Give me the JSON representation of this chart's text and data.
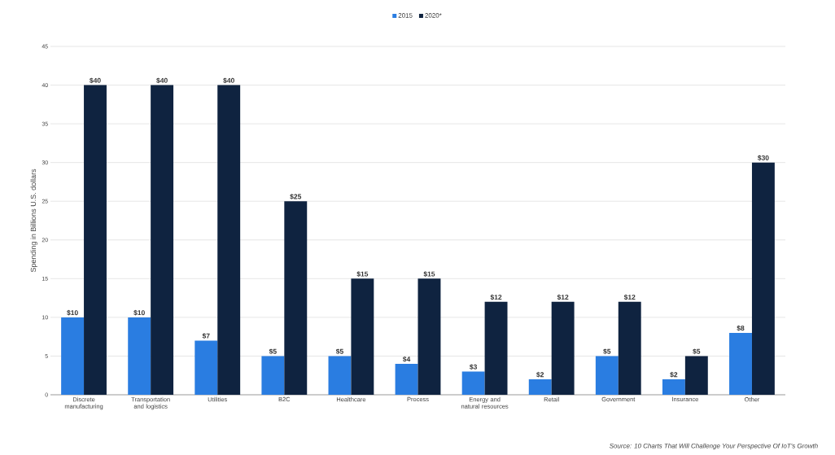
{
  "chart_data": {
    "type": "bar",
    "ylabel": "Spending in Billions U.S. dollars",
    "categories": [
      "Discrete manufacturing",
      "Transportation and logistics",
      "Utilities",
      "B2C",
      "Healthcare",
      "Process",
      "Energy and natural resources",
      "Retail",
      "Government",
      "Insurance",
      "Other"
    ],
    "series": [
      {
        "name": "2015",
        "color": "#2a7de1",
        "values": [
          10,
          10,
          7,
          5,
          5,
          4,
          3,
          2,
          5,
          2,
          8
        ],
        "value_labels": [
          "$10",
          "$10",
          "$7",
          "$5",
          "$5",
          "$4",
          "$3",
          "$2",
          "$5",
          "$2",
          "$8"
        ]
      },
      {
        "name": "2020*",
        "color": "#0f2340",
        "values": [
          40,
          40,
          40,
          25,
          15,
          15,
          12,
          12,
          12,
          5,
          30
        ],
        "value_labels": [
          "$40",
          "$40",
          "$40",
          "$25",
          "$15",
          "$15",
          "$12",
          "$12",
          "$12",
          "$5",
          "$30"
        ]
      }
    ],
    "ylim": [
      0,
      45
    ],
    "yticks": [
      0,
      5,
      10,
      15,
      20,
      25,
      30,
      35,
      40,
      45
    ],
    "grid": "y",
    "legend": "top",
    "annotations": [
      "Source: 10 Charts That Will Challenge Your Perspective Of IoT's Growth"
    ]
  }
}
